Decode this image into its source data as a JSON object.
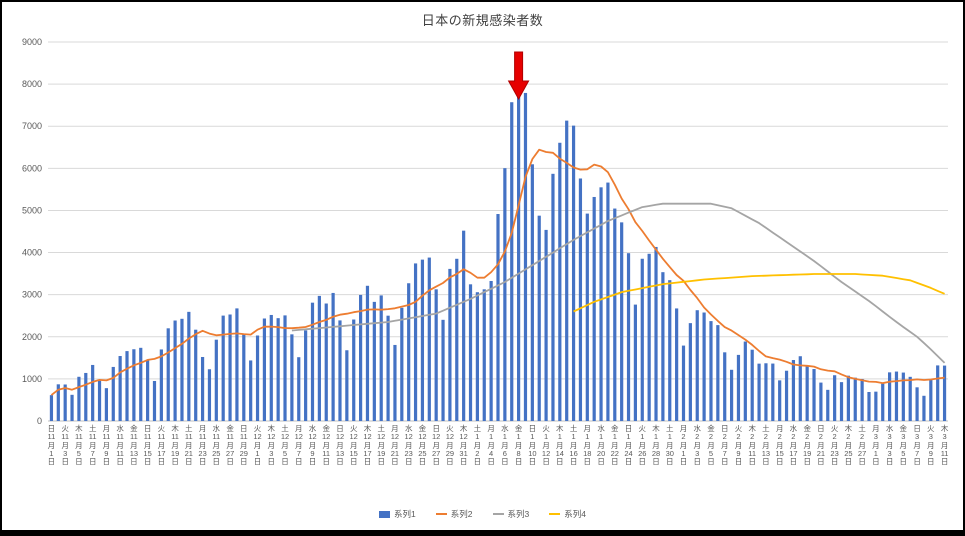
{
  "chart_data": {
    "type": "bar",
    "title": "日本の新規感染者数",
    "ylim": [
      0,
      9000
    ],
    "ytick_step": 1000,
    "y_tick_labels": [
      "0",
      "1000",
      "2000",
      "3000",
      "4000",
      "5000",
      "6000",
      "7000",
      "8000",
      "9000"
    ],
    "grid": true,
    "legend_position": "bottom",
    "x_label_interval_days": 2,
    "tick_labels": [
      "日11月1日",
      "火11月3日",
      "木11月5日",
      "土11月7日",
      "月11月9日",
      "水11月11日",
      "金11月13日",
      "日11月15日",
      "火11月17日",
      "木11月19日",
      "土11月21日",
      "月11月23日",
      "水11月25日",
      "金11月27日",
      "日11月29日",
      "火12月1日",
      "木12月3日",
      "土12月5日",
      "月12月7日",
      "水12月9日",
      "金12月11日",
      "日12月13日",
      "火12月15日",
      "木12月17日",
      "土12月19日",
      "月12月21日",
      "水12月23日",
      "金12月25日",
      "日12月27日",
      "火12月29日",
      "木12月31日",
      "土1月2日",
      "月1月4日",
      "水1月6日",
      "金1月8日",
      "日1月10日",
      "火1月12日",
      "木1月14日",
      "土1月16日",
      "月1月18日",
      "水1月20日",
      "金1月22日",
      "日1月24日",
      "火1月26日",
      "木1月28日",
      "土1月30日",
      "月2月1日",
      "水2月3日",
      "金2月5日",
      "日2月7日",
      "火2月9日",
      "木2月11日",
      "土2月13日",
      "月2月15日",
      "水2月17日",
      "金2月19日",
      "日2月21日",
      "火2月23日",
      "木2月25日",
      "土2月27日",
      "月3月1日",
      "水3月3日",
      "金3月5日",
      "日3月7日",
      "火3月9日",
      "木3月11日"
    ],
    "series": [
      {
        "name": "系列1",
        "type": "bar",
        "color": "#4472C4",
        "values": [
          614,
          871,
          867,
          622,
          1050,
          1141,
          1331,
          957,
          780,
          1284,
          1543,
          1660,
          1704,
          1738,
          1440,
          950,
          1699,
          2201,
          2386,
          2427,
          2592,
          2168,
          1520,
          1229,
          1931,
          2503,
          2529,
          2674,
          2066,
          1438,
          2030,
          2434,
          2518,
          2442,
          2508,
          2058,
          1515,
          2152,
          2810,
          2971,
          2790,
          3041,
          2389,
          1680,
          2410,
          2994,
          3211,
          2829,
          2982,
          2501,
          1806,
          2688,
          3271,
          3742,
          3832,
          3881,
          3127,
          2403,
          3612,
          3852,
          4520,
          3246,
          3058,
          3127,
          3325,
          4915,
          6004,
          7570,
          7844,
          7790,
          6096,
          4876,
          4538,
          5870,
          6607,
          7133,
          7014,
          5759,
          4925,
          5320,
          5549,
          5662,
          5045,
          4717,
          3985,
          2764,
          3853,
          3971,
          4133,
          3534,
          3344,
          2673,
          1791,
          2324,
          2631,
          2576,
          2372,
          2277,
          1631,
          1216,
          1570,
          1887,
          1693,
          1362,
          1371,
          1364,
          965,
          1194,
          1448,
          1538,
          1304,
          1234,
          912,
          740,
          1087,
          923,
          1076,
          1029,
          998,
          689,
          697,
          888,
          1155,
          1174,
          1150,
          1049,
          800,
          599,
          974,
          1320,
          1316
        ]
      },
      {
        "name": "系列2",
        "type": "line",
        "color": "#ED7D31",
        "derivation": "7-day trailing moving average of 系列1"
      },
      {
        "name": "系列3",
        "type": "line",
        "color": "#A5A5A5",
        "keypoints": [
          [
            35,
            2150
          ],
          [
            42,
            2250
          ],
          [
            49,
            2350
          ],
          [
            56,
            2550
          ],
          [
            61,
            2900
          ],
          [
            66,
            3300
          ],
          [
            71,
            3800
          ],
          [
            76,
            4300
          ],
          [
            81,
            4750
          ],
          [
            86,
            5080
          ],
          [
            89,
            5160
          ],
          [
            96,
            5160
          ],
          [
            99,
            5050
          ],
          [
            103,
            4700
          ],
          [
            107,
            4250
          ],
          [
            111,
            3800
          ],
          [
            115,
            3300
          ],
          [
            119,
            2850
          ],
          [
            123,
            2350
          ],
          [
            126,
            2000
          ],
          [
            128,
            1700
          ],
          [
            130,
            1380
          ]
        ]
      },
      {
        "name": "系列4",
        "type": "line",
        "color": "#FFC000",
        "keypoints": [
          [
            76,
            2600
          ],
          [
            79,
            2830
          ],
          [
            83,
            3060
          ],
          [
            89,
            3250
          ],
          [
            95,
            3360
          ],
          [
            102,
            3440
          ],
          [
            111,
            3490
          ],
          [
            117,
            3490
          ],
          [
            121,
            3450
          ],
          [
            125,
            3340
          ],
          [
            128,
            3160
          ],
          [
            130,
            3020
          ]
        ]
      }
    ],
    "annotation": {
      "shape": "block-arrow-down",
      "color": "#E60000",
      "border_color": "#B00000",
      "index": 68,
      "target_label": "金1月8日"
    }
  },
  "legend": {
    "items": [
      "系列1",
      "系列2",
      "系列3",
      "系列4"
    ]
  },
  "style": {
    "gridline_color": "#D9D9D9",
    "axis_line_color": "#BFBFBF",
    "axis_text_color": "#595959",
    "frame_color": "#000000"
  }
}
